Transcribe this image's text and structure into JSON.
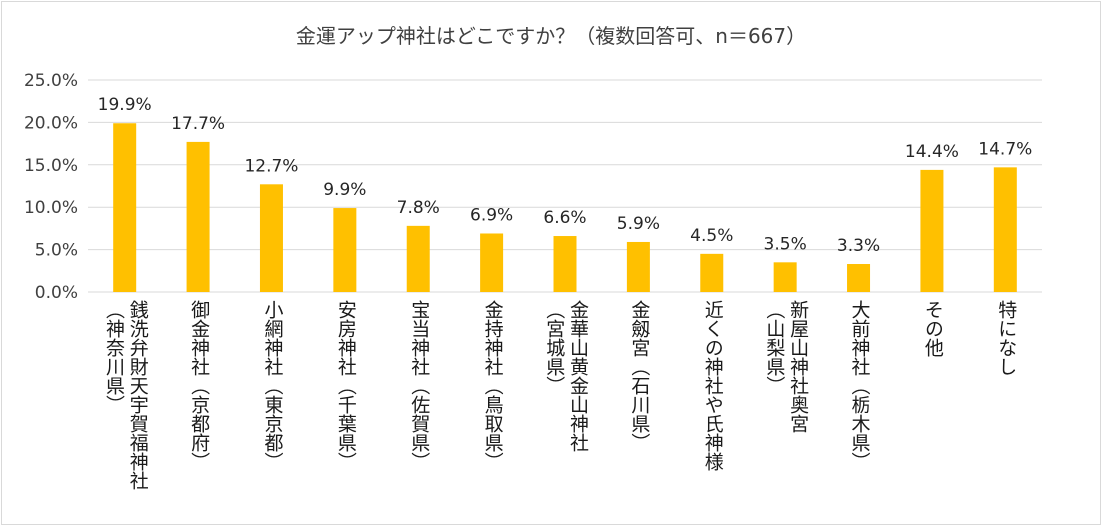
{
  "chart_data": {
    "type": "bar",
    "title": "金運アップ神社はどこですか？（複数回答可、n＝667）",
    "categories": [
      [
        "銭洗弁財天宇賀福神社",
        "（神奈川県）"
      ],
      [
        "御金神社（京都府）"
      ],
      [
        "小網神社（東京都）"
      ],
      [
        "安房神社（千葉県）"
      ],
      [
        "宝当神社（佐賀県）"
      ],
      [
        "金持神社（鳥取県）"
      ],
      [
        "金華山黄金山神社",
        "（宮城県）"
      ],
      [
        "金劔宮（石川県）"
      ],
      [
        "近くの神社や氏神様"
      ],
      [
        "新屋山神社奥宮",
        "（山梨県）"
      ],
      [
        "大前神社（栃木県）"
      ],
      [
        "その他"
      ],
      [
        "特になし"
      ]
    ],
    "values": [
      19.9,
      17.7,
      12.7,
      9.9,
      7.8,
      6.9,
      6.6,
      5.9,
      4.5,
      3.5,
      3.3,
      14.4,
      14.7
    ],
    "value_labels": [
      "19.9%",
      "17.7%",
      "12.7%",
      "9.9%",
      "7.8%",
      "6.9%",
      "6.6%",
      "5.9%",
      "4.5%",
      "3.5%",
      "3.3%",
      "14.4%",
      "14.7%"
    ],
    "ylim": [
      0,
      25
    ],
    "yticks": [
      0,
      5,
      10,
      15,
      20,
      25
    ],
    "ytick_labels": [
      "0.0%",
      "5.0%",
      "10.0%",
      "15.0%",
      "20.0%",
      "25.0%"
    ],
    "grid": true,
    "bar_color": "#FFC000",
    "xlabel": "",
    "ylabel": ""
  }
}
